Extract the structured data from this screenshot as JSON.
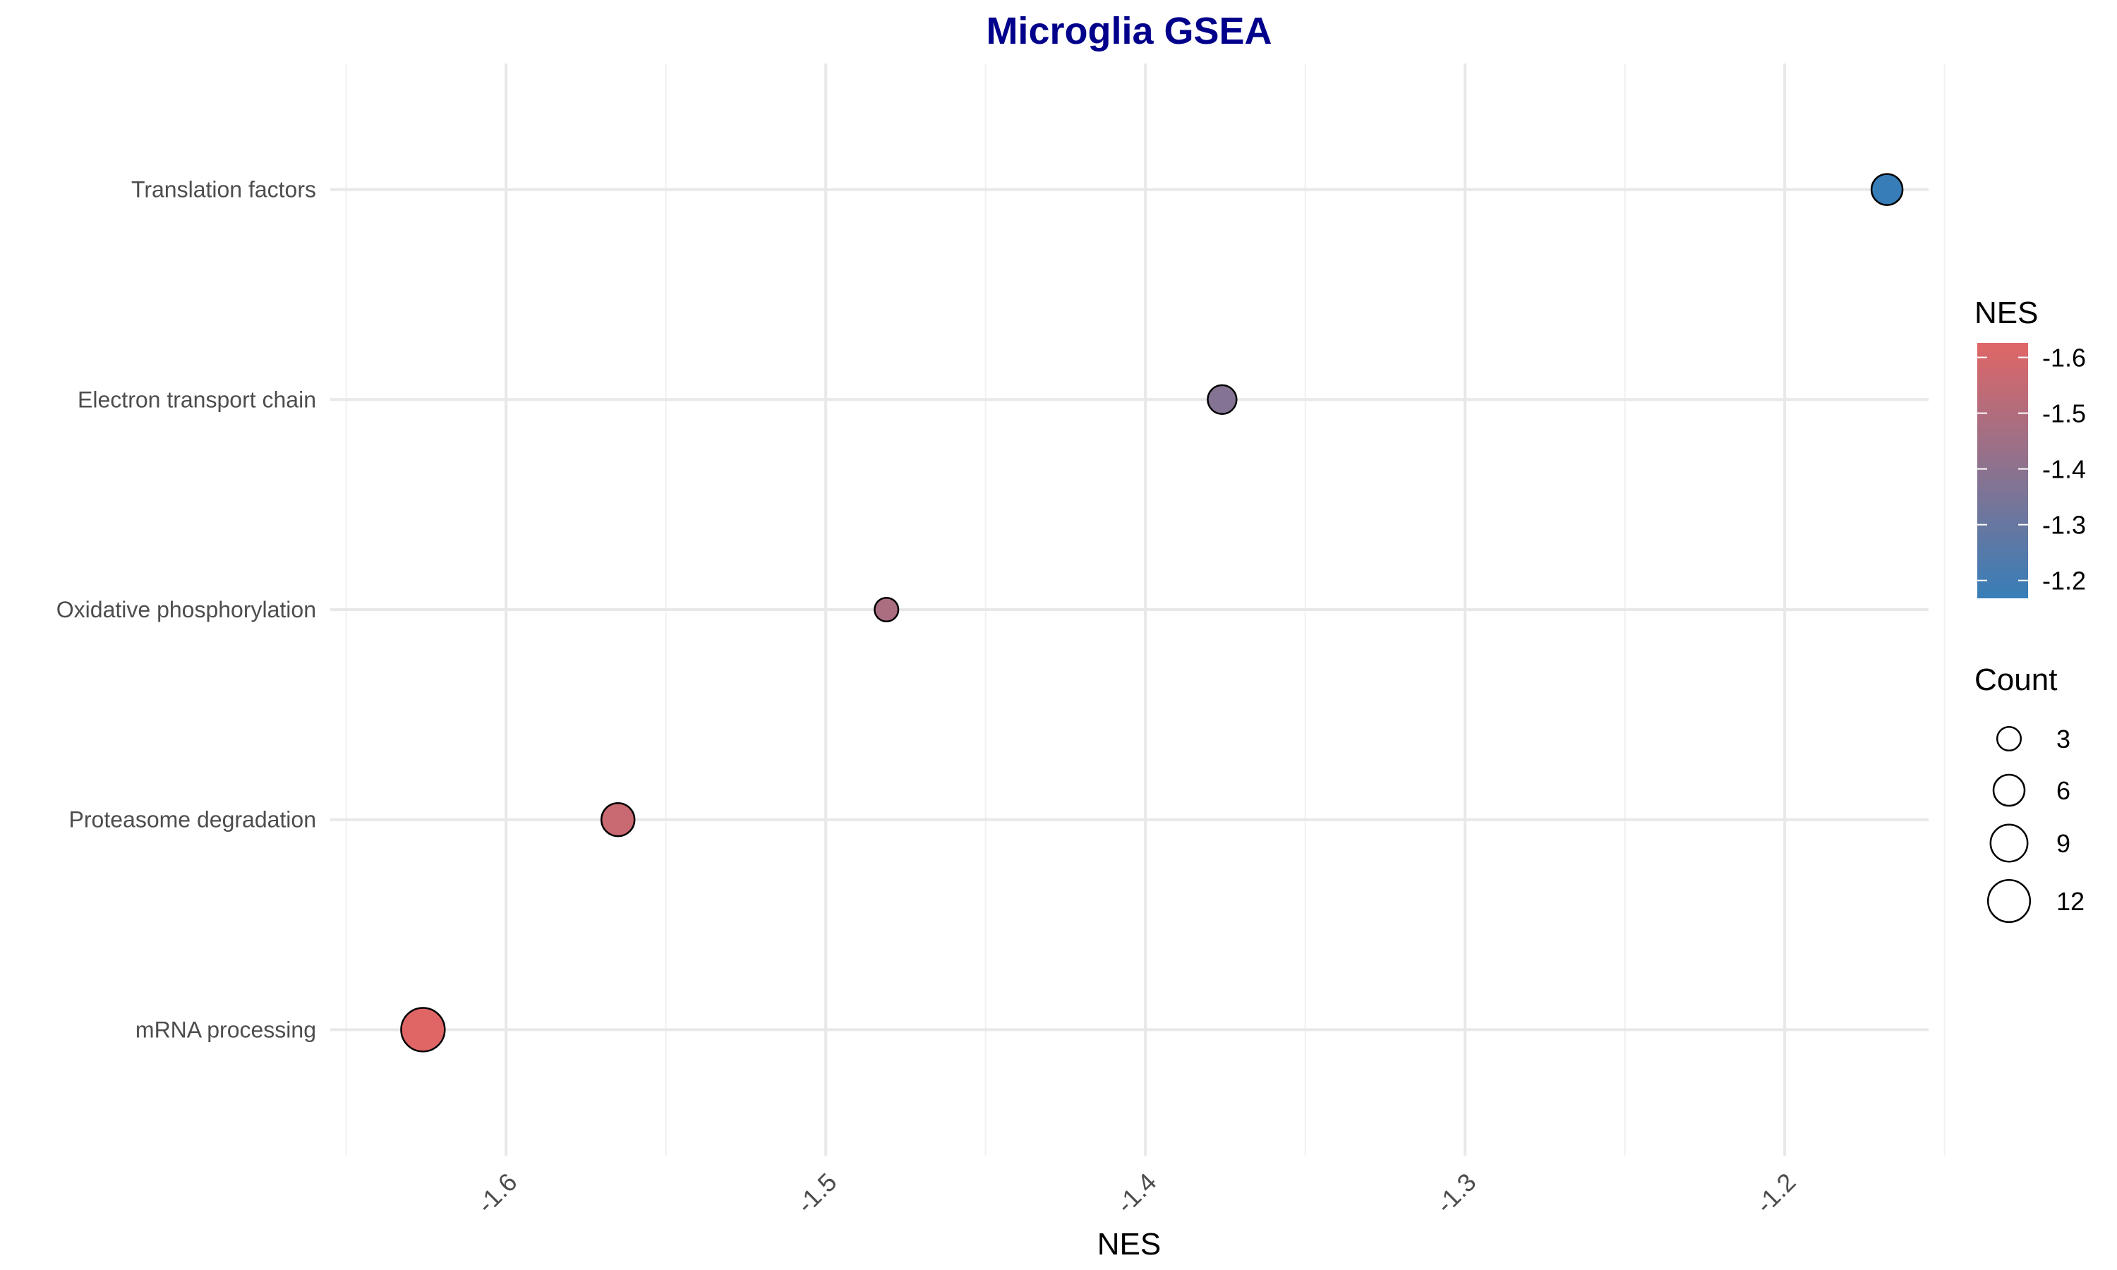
{
  "chart_data": {
    "type": "scatter",
    "title": "Microglia GSEA",
    "xlabel": "NES",
    "ylabel": "",
    "xlim": [
      -1.655,
      -1.155
    ],
    "x_ticks": [
      -1.6,
      -1.5,
      -1.4,
      -1.3,
      -1.2
    ],
    "x_tick_labels": [
      "-1.6",
      "-1.5",
      "-1.4",
      "-1.3",
      "-1.2"
    ],
    "x_minor_ticks": [
      -1.65,
      -1.55,
      -1.45,
      -1.35,
      -1.25,
      -1.15
    ],
    "categories": [
      "mRNA processing",
      "Proteasome degradation",
      "Oxidative phosphorylation",
      "Electron transport chain",
      "Translation factors"
    ],
    "points": [
      {
        "category": "Translation factors",
        "x": -1.168,
        "count": 6
      },
      {
        "category": "Electron transport chain",
        "x": -1.376,
        "count": 5
      },
      {
        "category": "Oxidative phosphorylation",
        "x": -1.481,
        "count": 3
      },
      {
        "category": "Proteasome degradation",
        "x": -1.565,
        "count": 7
      },
      {
        "category": "mRNA processing",
        "x": -1.626,
        "count": 13
      }
    ],
    "grid": true,
    "color_scale": {
      "title": "NES",
      "low_color": "#377eb8",
      "high_color": "#e06666",
      "low_value": -1.168,
      "high_value": -1.626,
      "ticks": [
        -1.6,
        -1.5,
        -1.4,
        -1.3,
        -1.2
      ],
      "tick_labels": [
        "-1.6",
        "-1.5",
        "-1.4",
        "-1.3",
        "-1.2"
      ]
    },
    "size_legend": {
      "title": "Count",
      "values": [
        3,
        6,
        9,
        12
      ],
      "labels": [
        "3",
        "6",
        "9",
        "12"
      ]
    },
    "legend_position": "right"
  }
}
